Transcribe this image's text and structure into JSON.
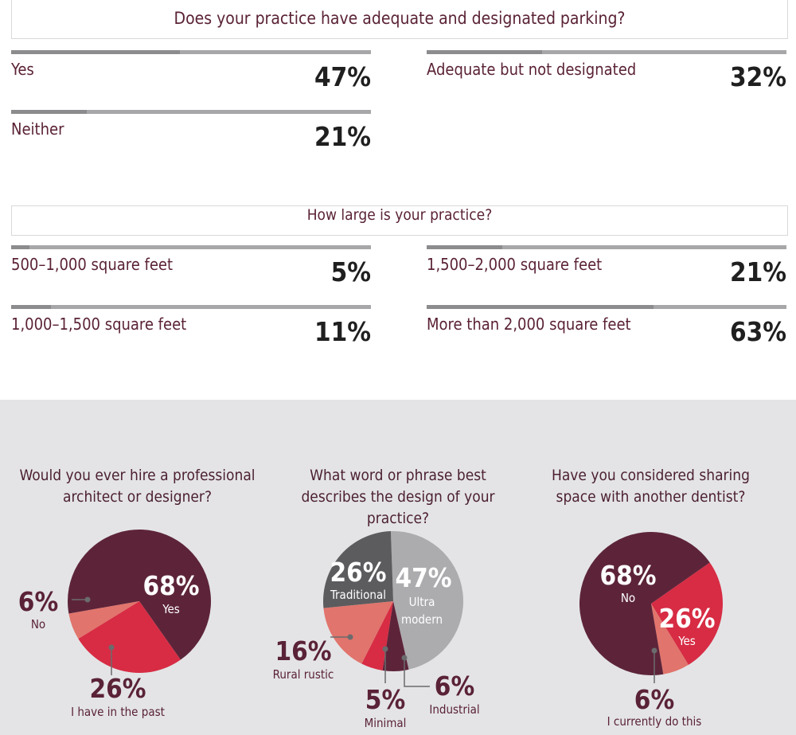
{
  "parking": {
    "question": "Does your practice have adequate and designated parking?",
    "items": [
      {
        "label": "Yes",
        "value": 47,
        "display": "47%"
      },
      {
        "label": "Adequate but not designated",
        "value": 32,
        "display": "32%"
      },
      {
        "label": "Neither",
        "value": 21,
        "display": "21%"
      }
    ]
  },
  "size": {
    "question": "How large is your practice?",
    "items": [
      {
        "label": "500–1,000 square feet",
        "value": 5,
        "display": "5%"
      },
      {
        "label": "1,500–2,000 square feet",
        "value": 21,
        "display": "21%"
      },
      {
        "label": "1,000–1,500 square feet",
        "value": 11,
        "display": "11%"
      },
      {
        "label": "More than 2,000 square feet",
        "value": 63,
        "display": "63%"
      }
    ]
  },
  "chart_data": [
    {
      "type": "pie",
      "title": "Would you ever hire a professional architect or designer?",
      "slices": [
        {
          "label": "Yes",
          "value": 68,
          "display": "68%",
          "color": "#5d2439"
        },
        {
          "label": "I have in the past",
          "value": 26,
          "display": "26%",
          "color": "#d72c44"
        },
        {
          "label": "No",
          "value": 6,
          "display": "6%",
          "color": "#e1746c"
        }
      ]
    },
    {
      "type": "pie",
      "title": "What word or phrase best describes the design of your practice?",
      "slices": [
        {
          "label": "Ultra modern",
          "value": 47,
          "display": "47%",
          "color": "#acabae"
        },
        {
          "label": "Industrial",
          "value": 6,
          "display": "6%",
          "color": "#5d2439"
        },
        {
          "label": "Minimal",
          "value": 5,
          "display": "5%",
          "color": "#d72c44"
        },
        {
          "label": "Rural rustic",
          "value": 16,
          "display": "16%",
          "color": "#e1746c"
        },
        {
          "label": "Traditional",
          "value": 26,
          "display": "26%",
          "color": "#5c5b5e"
        }
      ]
    },
    {
      "type": "pie",
      "title": "Have you considered sharing space with another dentist?",
      "slices": [
        {
          "label": "Yes",
          "value": 26,
          "display": "26%",
          "color": "#d72c44"
        },
        {
          "label": "I currently do this",
          "value": 6,
          "display": "6%",
          "color": "#e1746c"
        },
        {
          "label": "No",
          "value": 68,
          "display": "68%",
          "color": "#5d2439"
        }
      ]
    }
  ]
}
